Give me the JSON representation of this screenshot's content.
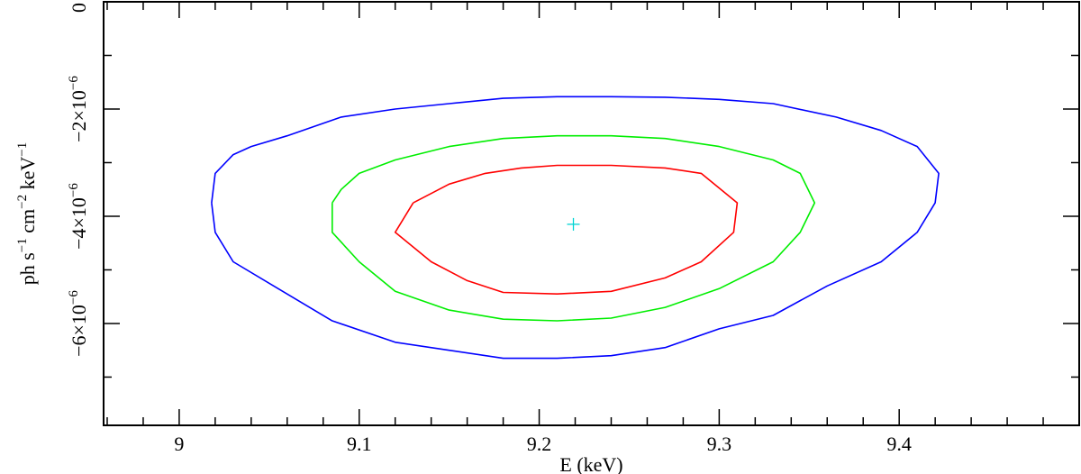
{
  "chart_data": {
    "type": "line",
    "title": "",
    "xlabel": "E (keV)",
    "ylabel": {
      "parts": [
        {
          "text": "ph s",
          "sup": false
        },
        {
          "text": "−1",
          "sup": true
        },
        {
          "text": " cm",
          "sup": false
        },
        {
          "text": "−2",
          "sup": true
        },
        {
          "text": " keV",
          "sup": false
        },
        {
          "text": "−1",
          "sup": true
        }
      ]
    },
    "xlim": [
      8.958,
      9.5
    ],
    "ylim": [
      -7.9e-06,
      0
    ],
    "grid": false,
    "legend": "none",
    "x_ticks": [
      {
        "value": 9.0,
        "label": "9"
      },
      {
        "value": 9.1,
        "label": "9.1"
      },
      {
        "value": 9.2,
        "label": "9.2"
      },
      {
        "value": 9.3,
        "label": "9.3"
      },
      {
        "value": 9.4,
        "label": "9.4"
      }
    ],
    "x_minor_step": 0.02,
    "y_ticks": [
      {
        "value": 0,
        "label": "0"
      },
      {
        "value": -2e-06,
        "mantissa": "−2×10",
        "exponent": "−6"
      },
      {
        "value": -4e-06,
        "mantissa": "−4×10",
        "exponent": "−6"
      },
      {
        "value": -6e-06,
        "mantissa": "−6×10",
        "exponent": "−6"
      }
    ],
    "y_minor_step": 1e-06,
    "best_fit": {
      "x": 9.219,
      "y": -4.15e-06,
      "color": "#00d4d4"
    },
    "series": [
      {
        "color": "#0000ff",
        "x": [
          9.018,
          9.02,
          9.03,
          9.04,
          9.06,
          9.09,
          9.12,
          9.15,
          9.18,
          9.21,
          9.24,
          9.27,
          9.3,
          9.33,
          9.365,
          9.39,
          9.41,
          9.422,
          9.42,
          9.41,
          9.39,
          9.36,
          9.33,
          9.3,
          9.27,
          9.24,
          9.21,
          9.18,
          9.15,
          9.12,
          9.085,
          9.055,
          9.03,
          9.02,
          9.018
        ],
        "y": [
          -3.75e-06,
          -3.2e-06,
          -2.85e-06,
          -2.7e-06,
          -2.5e-06,
          -2.15e-06,
          -2e-06,
          -1.9e-06,
          -1.8e-06,
          -1.77e-06,
          -1.77e-06,
          -1.78e-06,
          -1.82e-06,
          -1.9e-06,
          -2.15e-06,
          -2.4e-06,
          -2.7e-06,
          -3.2e-06,
          -3.75e-06,
          -4.3e-06,
          -4.85e-06,
          -5.3e-06,
          -5.85e-06,
          -6.1e-06,
          -6.45e-06,
          -6.6e-06,
          -6.65e-06,
          -6.65e-06,
          -6.5e-06,
          -6.35e-06,
          -5.95e-06,
          -5.35e-06,
          -4.85e-06,
          -4.3e-06,
          -3.75e-06
        ]
      },
      {
        "color": "#00ee00",
        "x": [
          9.085,
          9.09,
          9.1,
          9.12,
          9.15,
          9.18,
          9.21,
          9.24,
          9.27,
          9.3,
          9.33,
          9.345,
          9.353,
          9.345,
          9.33,
          9.3,
          9.27,
          9.24,
          9.21,
          9.18,
          9.15,
          9.12,
          9.1,
          9.085,
          9.085
        ],
        "y": [
          -3.75e-06,
          -3.5e-06,
          -3.2e-06,
          -2.95e-06,
          -2.7e-06,
          -2.55e-06,
          -2.5e-06,
          -2.5e-06,
          -2.55e-06,
          -2.7e-06,
          -2.95e-06,
          -3.2e-06,
          -3.75e-06,
          -4.3e-06,
          -4.85e-06,
          -5.35e-06,
          -5.7e-06,
          -5.9e-06,
          -5.95e-06,
          -5.92e-06,
          -5.75e-06,
          -5.4e-06,
          -4.85e-06,
          -4.3e-06,
          -3.75e-06
        ]
      },
      {
        "color": "#ff0000",
        "x": [
          9.13,
          9.15,
          9.17,
          9.19,
          9.21,
          9.24,
          9.27,
          9.29,
          9.31,
          9.308,
          9.29,
          9.27,
          9.24,
          9.21,
          9.18,
          9.16,
          9.14,
          9.12,
          9.13
        ],
        "y": [
          -3.75e-06,
          -3.4e-06,
          -3.2e-06,
          -3.1e-06,
          -3.05e-06,
          -3.05e-06,
          -3.1e-06,
          -3.2e-06,
          -3.75e-06,
          -4.3e-06,
          -4.85e-06,
          -5.15e-06,
          -5.4e-06,
          -5.45e-06,
          -5.42e-06,
          -5.2e-06,
          -4.85e-06,
          -4.3e-06,
          -3.75e-06
        ]
      }
    ]
  }
}
